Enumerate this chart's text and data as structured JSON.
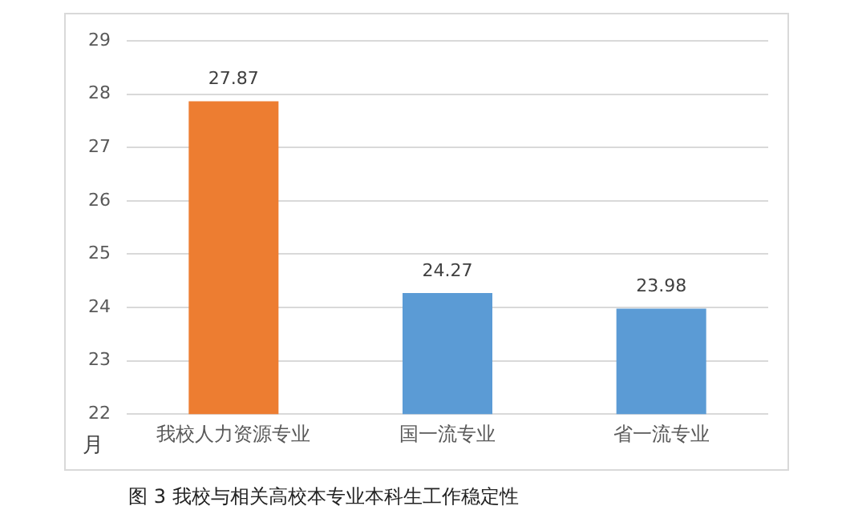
{
  "chart_data": {
    "type": "bar",
    "title": "图 3  我校与相关高校本专业本科生工作稳定性",
    "ylabel": "月",
    "categories": [
      "我校人力资源专业",
      "国一流专业",
      "省一流专业"
    ],
    "values": [
      27.87,
      24.27,
      23.98
    ],
    "colors": [
      "#ed7d31",
      "#5b9bd5",
      "#5b9bd5"
    ],
    "ylim": [
      22,
      29
    ],
    "yticks": [
      22,
      23,
      24,
      25,
      26,
      27,
      28,
      29
    ],
    "grid": "y",
    "data_labels": true,
    "legend": false
  }
}
